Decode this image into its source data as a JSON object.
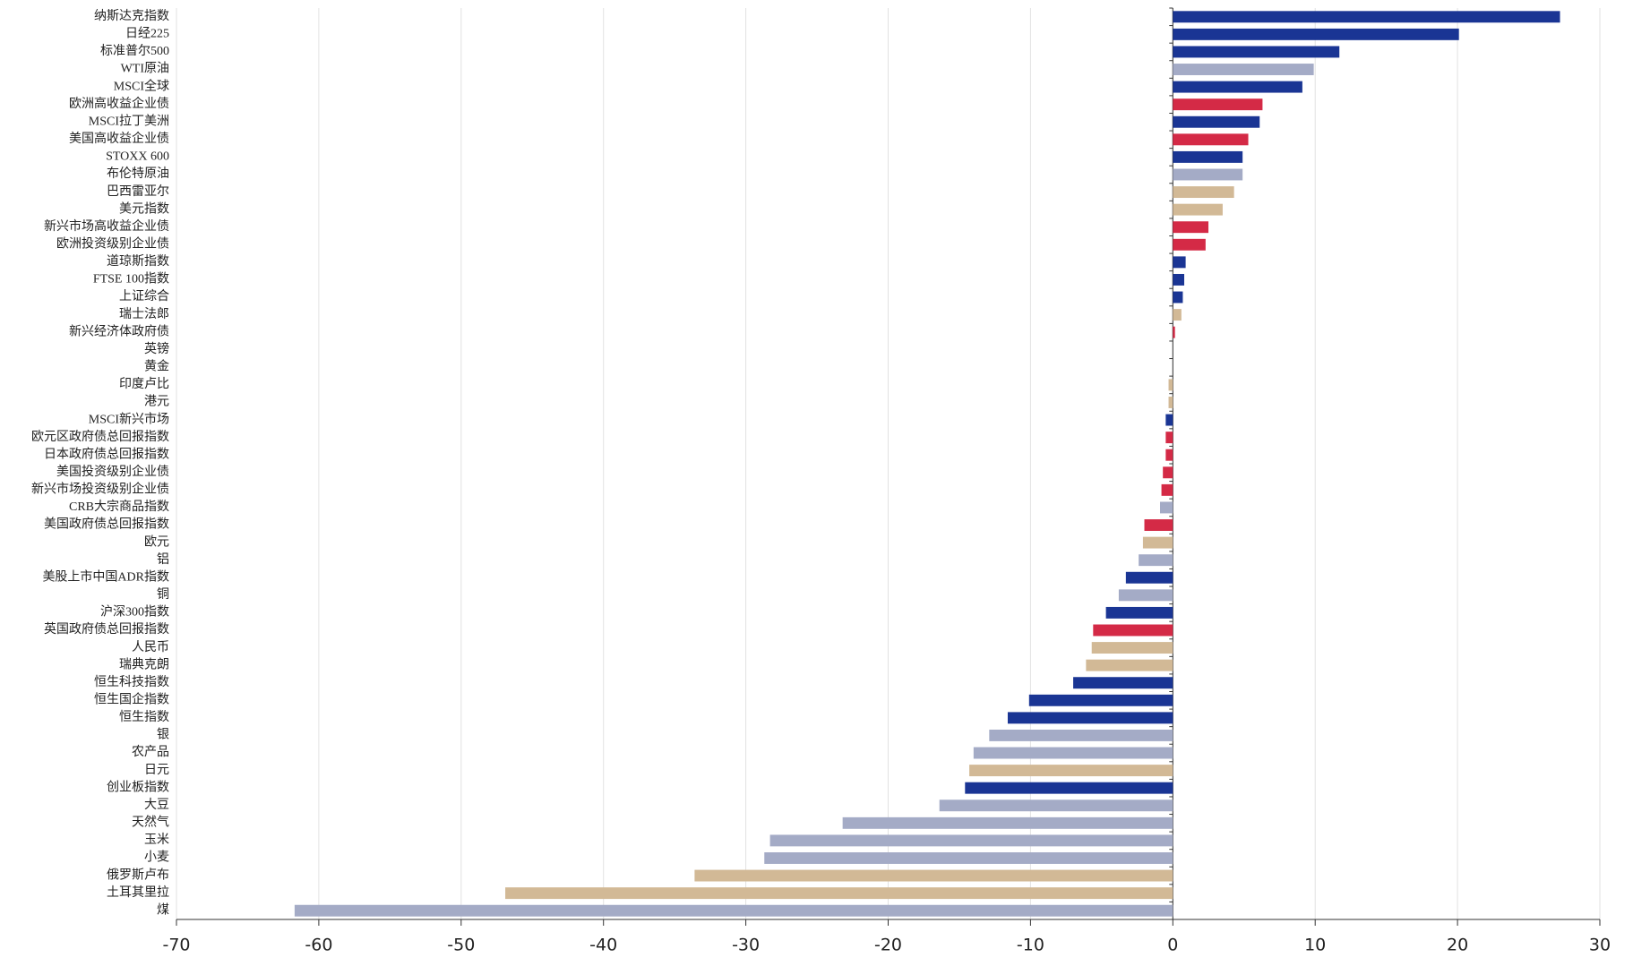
{
  "chart_data": {
    "type": "barh",
    "categories": [
      "纳斯达克指数",
      "日经225",
      "标准普尔500",
      "WTI原油",
      "MSCI全球",
      "欧洲高收益企业债",
      "MSCI拉丁美洲",
      "美国高收益企业债",
      "STOXX 600",
      "布伦特原油",
      "巴西雷亚尔",
      "美元指数",
      "新兴市场高收益企业债",
      "欧洲投资级别企业债",
      "道琼斯指数",
      "FTSE 100指数",
      "上证综合",
      "瑞士法郎",
      "新兴经济体政府债",
      "英镑",
      "黄金",
      "印度卢比",
      "港元",
      "MSCI新兴市场",
      "欧元区政府债总回报指数",
      "日本政府债总回报指数",
      "美国投资级别企业债",
      "新兴市场投资级别企业债",
      "CRB大宗商品指数",
      "美国政府债总回报指数",
      "欧元",
      "铝",
      "美股上市中国ADR指数",
      "铜",
      "沪深300指数",
      "英国政府债总回报指数",
      "人民币",
      "瑞典克朗",
      "恒生科技指数",
      "恒生国企指数",
      "恒生指数",
      "银",
      "农产品",
      "日元",
      "创业板指数",
      "大豆",
      "天然气",
      "玉米",
      "小麦",
      "俄罗斯卢布",
      "土耳其里拉",
      "煤"
    ],
    "values": [
      27.2,
      20.1,
      11.7,
      9.9,
      9.1,
      6.3,
      6.1,
      5.3,
      4.9,
      4.9,
      4.3,
      3.5,
      2.5,
      2.3,
      0.9,
      0.8,
      0.7,
      0.6,
      0.15,
      0,
      0,
      -0.3,
      -0.3,
      -0.5,
      -0.5,
      -0.5,
      -0.7,
      -0.8,
      -0.9,
      -2.0,
      -2.1,
      -2.4,
      -3.3,
      -3.8,
      -4.7,
      -5.6,
      -5.7,
      -6.1,
      -7.0,
      -10.1,
      -11.6,
      -12.9,
      -14.0,
      -14.3,
      -14.6,
      -16.4,
      -23.2,
      -28.3,
      -28.7,
      -33.6,
      -46.9,
      -61.7
    ],
    "colors": [
      "#1a3594",
      "#1a3594",
      "#1a3594",
      "#a4abc6",
      "#1a3594",
      "#d42a46",
      "#1a3594",
      "#d42a46",
      "#1a3594",
      "#a4abc6",
      "#d2b996",
      "#d2b996",
      "#d42a46",
      "#d42a46",
      "#1a3594",
      "#1a3594",
      "#1a3594",
      "#d2b996",
      "#d42a46",
      "#d2b996",
      "#a4abc6",
      "#d2b996",
      "#d2b996",
      "#1a3594",
      "#d42a46",
      "#d42a46",
      "#d42a46",
      "#d42a46",
      "#a4abc6",
      "#d42a46",
      "#d2b996",
      "#a4abc6",
      "#1a3594",
      "#a4abc6",
      "#1a3594",
      "#d42a46",
      "#d2b996",
      "#d2b996",
      "#1a3594",
      "#1a3594",
      "#1a3594",
      "#a4abc6",
      "#a4abc6",
      "#d2b996",
      "#1a3594",
      "#a4abc6",
      "#a4abc6",
      "#a4abc6",
      "#a4abc6",
      "#d2b996",
      "#d2b996",
      "#a4abc6"
    ],
    "xlim": [
      -70,
      30
    ],
    "xticks": [
      -70,
      -60,
      -50,
      -40,
      -30,
      -20,
      -10,
      0,
      10,
      20,
      30
    ],
    "grid": true
  }
}
